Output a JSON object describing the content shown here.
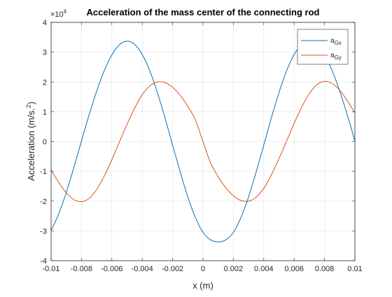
{
  "chart_data": {
    "type": "line",
    "title": "Acceleration of the mass center of the connecting rod",
    "xlabel": "x (m)",
    "ylabel": "Acceleration (m/s.",
    "ylabel_superscript": "2",
    "ylabel_suffix": ")",
    "y_exponent_label": "×10",
    "y_exponent_power": "4",
    "xlim": [
      -0.01,
      0.01
    ],
    "ylim": [
      -4,
      4
    ],
    "x_ticks": [
      -0.01,
      -0.008,
      -0.006,
      -0.004,
      -0.002,
      0,
      0.002,
      0.004,
      0.006,
      0.008,
      0.01
    ],
    "x_tick_labels": [
      "-0.01",
      "-0.008",
      "-0.006",
      "-0.004",
      "-0.002",
      "0",
      "0.002",
      "0.004",
      "0.006",
      "0.008",
      "0.01"
    ],
    "y_ticks": [
      -4,
      -3,
      -2,
      -1,
      0,
      1,
      2,
      3,
      4
    ],
    "y_tick_labels": [
      "-4",
      "-3",
      "-2",
      "-1",
      "0",
      "1",
      "2",
      "3",
      "4"
    ],
    "grid": true,
    "legend_position": "top-right",
    "series": [
      {
        "name": "a",
        "subscript": "Gx",
        "color": "#0072BD",
        "x": [
          -0.01,
          -0.0095,
          -0.009,
          -0.0085,
          -0.008,
          -0.0075,
          -0.007,
          -0.0065,
          -0.006,
          -0.0055,
          -0.005,
          -0.0045,
          -0.004,
          -0.0035,
          -0.003,
          -0.0025,
          -0.002,
          -0.0015,
          -0.001,
          -0.0005,
          0,
          0.0005,
          0.001,
          0.0015,
          0.002,
          0.0025,
          0.003,
          0.0035,
          0.004,
          0.0045,
          0.005,
          0.0055,
          0.006,
          0.0065,
          0.007,
          0.0075,
          0.008,
          0.0085,
          0.009,
          0.0095,
          0.01
        ],
        "y": [
          -2.99,
          -2.43,
          -1.71,
          -0.87,
          0.02,
          0.89,
          1.69,
          2.38,
          2.91,
          3.25,
          3.37,
          3.26,
          2.92,
          2.37,
          1.64,
          0.79,
          -0.12,
          -1.02,
          -1.86,
          -2.55,
          -3.05,
          -3.3,
          -3.37,
          -3.3,
          -3.05,
          -2.55,
          -1.86,
          -1.02,
          -0.12,
          0.79,
          1.64,
          2.37,
          2.92,
          3.26,
          3.37,
          3.25,
          2.91,
          2.38,
          1.69,
          0.89,
          0.02
        ]
      },
      {
        "name": "a",
        "subscript": "Gy",
        "color": "#D95319",
        "x": [
          -0.01,
          -0.0095,
          -0.009,
          -0.0085,
          -0.008,
          -0.0075,
          -0.007,
          -0.0065,
          -0.006,
          -0.0055,
          -0.005,
          -0.0045,
          -0.004,
          -0.0035,
          -0.003,
          -0.0025,
          -0.002,
          -0.0015,
          -0.001,
          -0.0005,
          0,
          0.0005,
          0.001,
          0.0015,
          0.002,
          0.0025,
          0.003,
          0.0035,
          0.004,
          0.0045,
          0.005,
          0.0055,
          0.006,
          0.0065,
          0.007,
          0.0075,
          0.008,
          0.0085,
          0.009,
          0.0095,
          0.01
        ],
        "y": [
          -0.96,
          -1.37,
          -1.72,
          -1.95,
          -2.02,
          -1.91,
          -1.61,
          -1.16,
          -0.61,
          -0.01,
          0.58,
          1.12,
          1.57,
          1.87,
          2.0,
          1.98,
          1.82,
          1.55,
          1.18,
          0.72,
          0.0,
          -0.72,
          -1.18,
          -1.55,
          -1.82,
          -1.98,
          -2.0,
          -1.87,
          -1.57,
          -1.12,
          -0.58,
          0.01,
          0.61,
          1.16,
          1.61,
          1.91,
          2.02,
          1.95,
          1.72,
          1.37,
          0.96
        ]
      }
    ]
  }
}
